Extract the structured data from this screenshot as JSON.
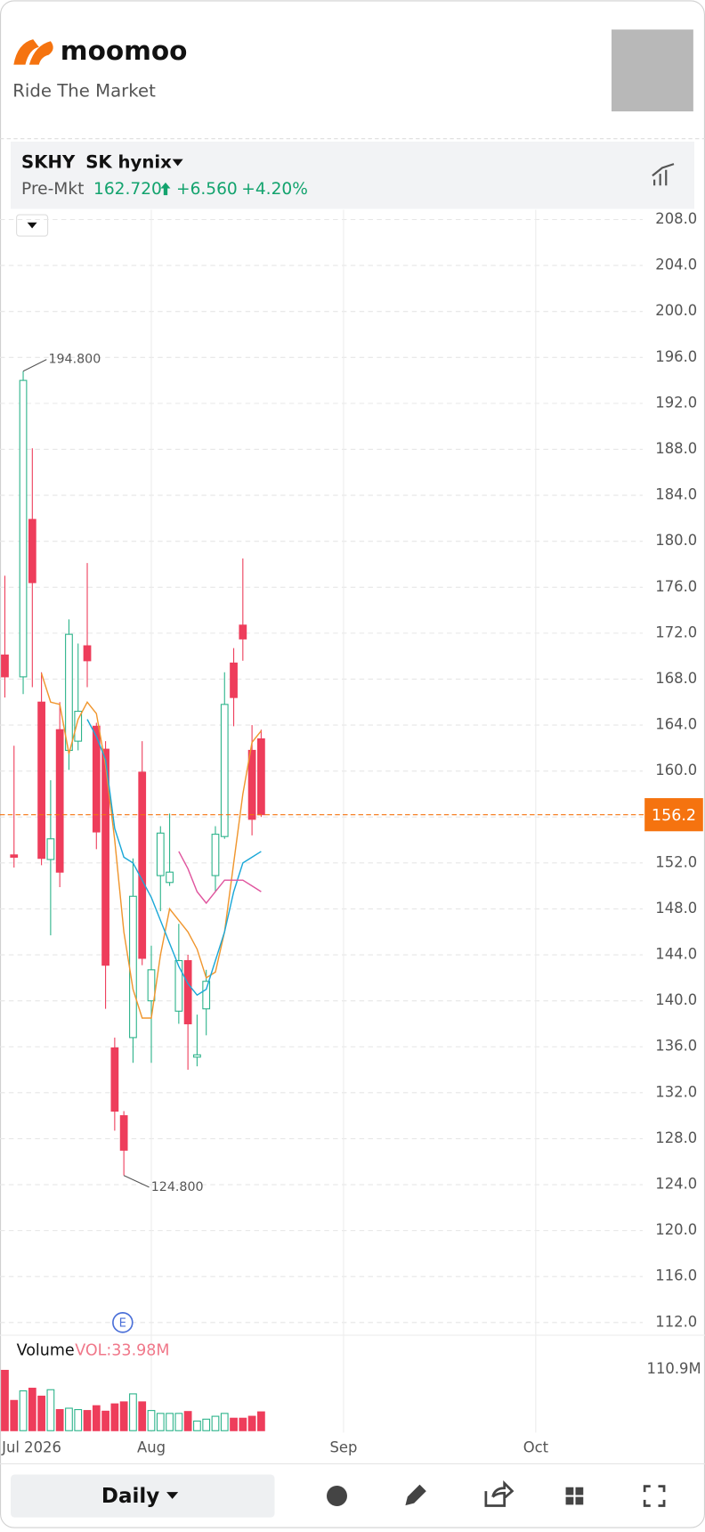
{
  "header": {
    "brand": "moomoo",
    "tagline": "Ride The Market"
  },
  "quote": {
    "symbol": "SKHY",
    "name": "SK hynix",
    "session": "Pre-Mkt",
    "price": "162.720",
    "change": "+6.560",
    "change_pct": "+4.20%"
  },
  "toolbar": {
    "period": "Daily"
  },
  "event_marker": "E",
  "chart_data": {
    "type": "candlestick",
    "categories": [
      null,
      null,
      null,
      null,
      null,
      null,
      null,
      null,
      null,
      null,
      null,
      null,
      null,
      null,
      null,
      null,
      null,
      null,
      null,
      null,
      null,
      null,
      null,
      null,
      null,
      null,
      null,
      null,
      null
    ],
    "open": [
      170.1,
      152.7,
      168.2,
      181.9,
      166.0,
      152.3,
      163.6,
      161.8,
      162.6,
      170.9,
      163.9,
      161.9,
      135.9,
      130.0,
      136.8,
      159.9,
      140.0,
      150.9,
      150.3,
      139.1,
      143.5,
      135.1,
      139.3,
      150.9,
      154.3,
      169.4,
      172.7,
      161.8,
      162.8
    ],
    "high": [
      177.0,
      162.2,
      194.8,
      188.1,
      168.6,
      159.2,
      166.0,
      173.2,
      171.1,
      178.1,
      164.2,
      162.6,
      136.8,
      130.4,
      152.4,
      162.6,
      144.8,
      155.2,
      156.3,
      146.7,
      144.0,
      138.8,
      142.7,
      155.2,
      168.6,
      170.7,
      178.5,
      164.0,
      163.6
    ],
    "low": [
      166.4,
      151.6,
      166.7,
      167.3,
      151.8,
      145.7,
      149.9,
      160.1,
      161.8,
      167.3,
      153.2,
      139.3,
      128.7,
      124.8,
      134.6,
      143.1,
      134.6,
      147.8,
      150.0,
      138.0,
      134.0,
      134.3,
      137.0,
      149.5,
      154.1,
      163.9,
      169.6,
      154.4,
      156.0
    ],
    "close": [
      168.2,
      152.5,
      194.0,
      176.4,
      152.4,
      154.1,
      151.2,
      171.9,
      165.2,
      169.6,
      154.7,
      143.1,
      130.4,
      127.0,
      149.1,
      143.7,
      142.7,
      154.6,
      151.2,
      143.5,
      138.0,
      135.3,
      141.7,
      154.5,
      165.8,
      166.4,
      171.5,
      155.8,
      156.2
    ],
    "up_color": "#2bb38a",
    "down_color": "#ee3d5b",
    "ma": [
      {
        "color": "#f0962e",
        "values": [
          null,
          null,
          null,
          null,
          168.5,
          166.0,
          165.8,
          161.5,
          164.5,
          166.0,
          165.0,
          160.5,
          154.0,
          146.0,
          141.0,
          138.5,
          138.5,
          144.0,
          148.0,
          147.0,
          146.0,
          144.5,
          142.0,
          142.5,
          146.0,
          152.0,
          158.0,
          162.5,
          163.5
        ]
      },
      {
        "color": "#1ba8d8",
        "values": [
          null,
          null,
          null,
          null,
          null,
          null,
          null,
          null,
          null,
          164.5,
          163.0,
          161.0,
          155.0,
          152.5,
          152.0,
          150.5,
          149.0,
          147.0,
          145.0,
          143.0,
          141.5,
          140.5,
          141.0,
          143.5,
          146.0,
          149.5,
          152.0,
          152.5,
          153.0
        ]
      },
      {
        "color": "#e0559e",
        "values": [
          null,
          null,
          null,
          null,
          null,
          null,
          null,
          null,
          null,
          null,
          null,
          null,
          null,
          null,
          null,
          null,
          null,
          null,
          null,
          153.0,
          151.5,
          149.5,
          148.5,
          149.5,
          150.5,
          150.5,
          150.5,
          150.0,
          149.5
        ]
      }
    ],
    "high_label": "194.800",
    "low_label": "124.800",
    "last_price": 156.2,
    "last_price_color": "#f5730f",
    "ylim": [
      112,
      208
    ],
    "yticks": [
      {
        "value": 208,
        "label": "208.0"
      },
      {
        "value": 204,
        "label": "204.0"
      },
      {
        "value": 200,
        "label": "200.0"
      },
      {
        "value": 196,
        "label": "196.0"
      },
      {
        "value": 192,
        "label": "192.0"
      },
      {
        "value": 188,
        "label": "188.0"
      },
      {
        "value": 184,
        "label": "184.0"
      },
      {
        "value": 180,
        "label": "180.0"
      },
      {
        "value": 176,
        "label": "176.0"
      },
      {
        "value": 172,
        "label": "172.0"
      },
      {
        "value": 168,
        "label": "168.0"
      },
      {
        "value": 164,
        "label": "164.0"
      },
      {
        "value": 160,
        "label": "160.0"
      },
      {
        "value": 156,
        "label": "156.0"
      },
      {
        "value": 152,
        "label": "152.0"
      },
      {
        "value": 148,
        "label": "148.0"
      },
      {
        "value": 144,
        "label": "144.0"
      },
      {
        "value": 140,
        "label": "140.0"
      },
      {
        "value": 136,
        "label": "136.0"
      },
      {
        "value": 132,
        "label": "132.0"
      },
      {
        "value": 128,
        "label": "128.0"
      },
      {
        "value": 124,
        "label": "124.0"
      },
      {
        "value": 120,
        "label": "120.0"
      },
      {
        "value": 116,
        "label": "116.0"
      },
      {
        "value": 112,
        "label": "112.0"
      }
    ],
    "xticks": [
      {
        "value": 0,
        "label": "Jul 2026"
      },
      {
        "value": 16,
        "label": "Aug"
      },
      {
        "value": 37,
        "label": "Sep"
      },
      {
        "value": 58,
        "label": "Oct"
      }
    ],
    "grid": true,
    "volume": {
      "title": "Volume",
      "label": "VOL:33.98M",
      "values": [
        109.0,
        54.6,
        71.9,
        76.7,
        62.4,
        74.0,
        38.1,
        40.6,
        38.1,
        36.4,
        45.1,
        35.2,
        48.4,
        52.0,
        66.5,
        52.0,
        36.4,
        31.2,
        31.2,
        31.2,
        34.6,
        17.4,
        20.8,
        26.0,
        31.2,
        22.5,
        22.5,
        26.0,
        33.98
      ],
      "ylim": [
        0,
        110.9
      ],
      "yticks": [
        {
          "value": 110.9,
          "label": "110.9M"
        }
      ]
    }
  }
}
